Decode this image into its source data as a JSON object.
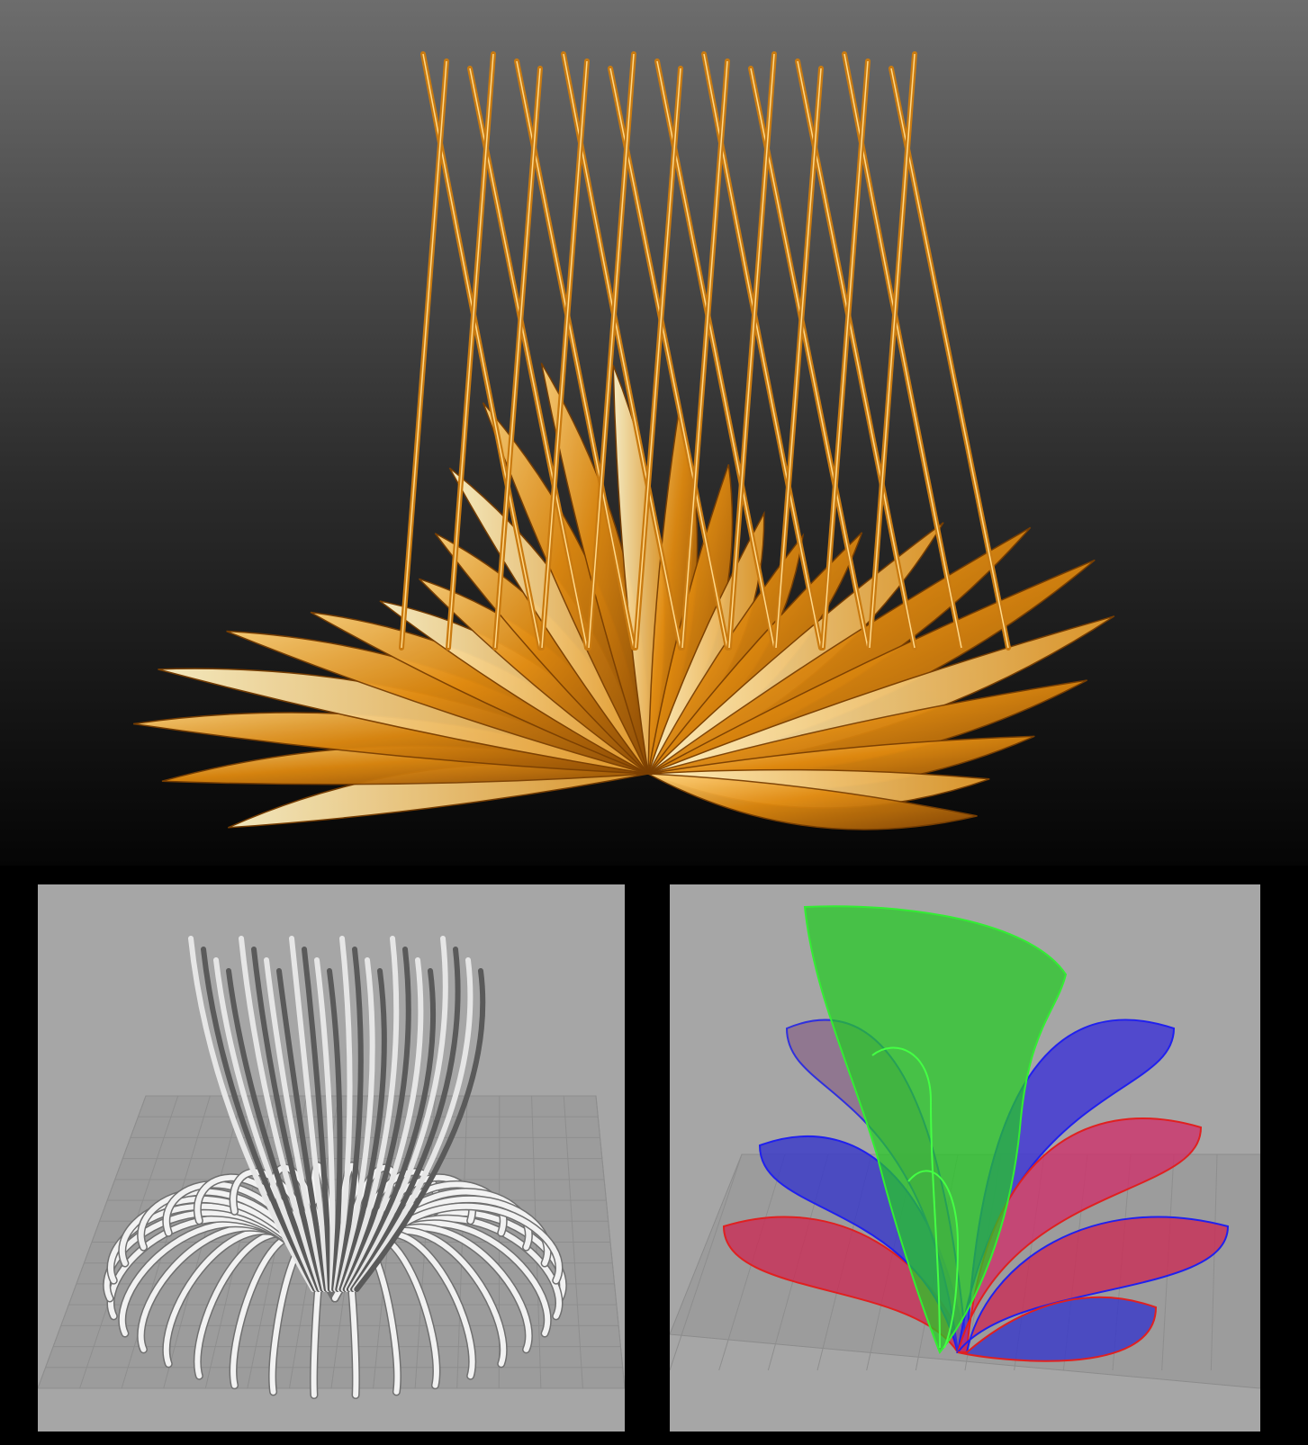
{
  "figure": {
    "panels": [
      {
        "id": "top",
        "subject": "golden-feathered-sculpture-render",
        "background": [
          "#6b6b6b",
          "#050505"
        ],
        "accent": "#e08a10"
      },
      {
        "id": "bottom-left",
        "subject": "white-tube-loop-model",
        "background": "#a6a6a6",
        "accent": "#f2f2f2"
      },
      {
        "id": "bottom-right",
        "subject": "colored-surface-petal-model",
        "background": "#a6a6a6",
        "accents": [
          "#22cc22",
          "#3030dd",
          "#dd2244"
        ]
      }
    ]
  }
}
